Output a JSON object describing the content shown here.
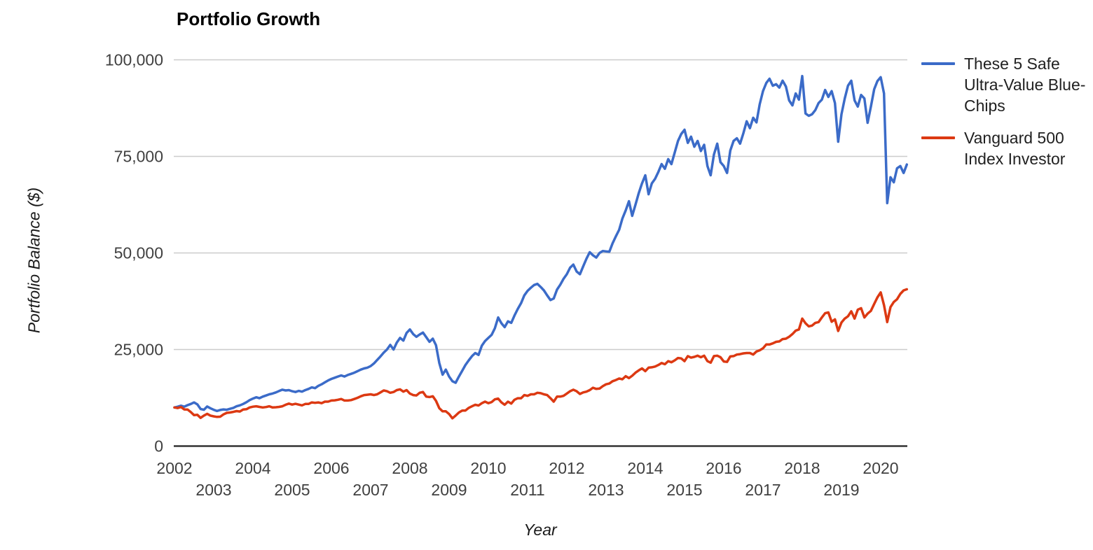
{
  "chart": {
    "title": "Portfolio Growth",
    "x_axis_title": "Year",
    "y_axis_title": "Portfolio Balance ($)"
  },
  "legend": {
    "items": [
      {
        "name": "These 5 Safe Ultra-Value Blue-Chips",
        "color": "#3B6BC8",
        "lines": [
          "These 5 Safe",
          "Ultra-Value Blue-",
          "Chips"
        ]
      },
      {
        "name": "Vanguard 500 Index Investor",
        "color": "#DC3912",
        "lines": [
          "Vanguard 500",
          "Index Investor"
        ]
      }
    ]
  },
  "chart_data": {
    "type": "line",
    "title": "Portfolio Growth",
    "xlabel": "Year",
    "ylabel": "Portfolio Balance ($)",
    "x_start_year": 2002,
    "points_per_year": 12,
    "x_end_label": "Sep 2020",
    "ylim": [
      0,
      100000
    ],
    "grid": "horizontal",
    "legend_position": "right",
    "y_ticks": [
      {
        "value": 0,
        "label": "0"
      },
      {
        "value": 25000,
        "label": "25,000"
      },
      {
        "value": 50000,
        "label": "50,000"
      },
      {
        "value": 75000,
        "label": "75,000"
      },
      {
        "value": 100000,
        "label": "100,000"
      }
    ],
    "x_ticks": [
      2002,
      2003,
      2004,
      2005,
      2006,
      2007,
      2008,
      2009,
      2010,
      2011,
      2012,
      2013,
      2014,
      2015,
      2016,
      2017,
      2018,
      2019,
      2020
    ],
    "series": [
      {
        "name": "These 5 Safe Ultra-Value Blue-Chips",
        "color": "#3B6BC8",
        "values": [
          10000,
          10200,
          10450,
          10200,
          10600,
          10900,
          11300,
          10800,
          9600,
          9400,
          10250,
          9800,
          9400,
          9100,
          9350,
          9500,
          9400,
          9650,
          9900,
          10300,
          10550,
          10900,
          11350,
          11900,
          12300,
          12650,
          12400,
          12800,
          13100,
          13400,
          13600,
          13900,
          14250,
          14600,
          14400,
          14500,
          14200,
          14000,
          14300,
          14100,
          14500,
          14800,
          15200,
          15000,
          15600,
          16000,
          16500,
          17000,
          17400,
          17700,
          18000,
          18300,
          18000,
          18400,
          18700,
          19000,
          19400,
          19800,
          20100,
          20300,
          20700,
          21400,
          22300,
          23200,
          24200,
          25000,
          26200,
          25000,
          26800,
          28000,
          27300,
          29300,
          30200,
          29000,
          28300,
          28900,
          29400,
          28200,
          27000,
          27800,
          26100,
          21500,
          18500,
          19800,
          18000,
          16800,
          16400,
          18000,
          19500,
          21000,
          22200,
          23300,
          24100,
          23600,
          26000,
          27200,
          28000,
          28800,
          30500,
          33300,
          31800,
          30800,
          32300,
          31900,
          33800,
          35500,
          37000,
          39000,
          40200,
          41000,
          41700,
          42000,
          41200,
          40300,
          39000,
          37800,
          38200,
          40500,
          41800,
          43300,
          44500,
          46200,
          47000,
          45200,
          44500,
          46500,
          48500,
          50200,
          49400,
          48800,
          50000,
          50500,
          50400,
          50300,
          52500,
          54300,
          56000,
          58900,
          61000,
          63400,
          59600,
          62500,
          65500,
          68000,
          70100,
          65200,
          68000,
          69200,
          71000,
          73000,
          71800,
          74300,
          73000,
          76000,
          79000,
          80800,
          81900,
          78500,
          80100,
          77500,
          79000,
          76400,
          78000,
          72500,
          70100,
          75500,
          78300,
          73500,
          72500,
          70700,
          76500,
          79000,
          79700,
          78300,
          81000,
          84100,
          82300,
          85000,
          83800,
          88500,
          91900,
          94000,
          95100,
          93300,
          93700,
          92800,
          94600,
          93100,
          89500,
          88200,
          91300,
          89700,
          95800,
          86100,
          85500,
          85900,
          87000,
          88800,
          89700,
          92200,
          90400,
          91900,
          88800,
          78800,
          85900,
          90000,
          93300,
          94600,
          89500,
          87900,
          90900,
          90000,
          83700,
          87900,
          92400,
          94500,
          95500,
          91300,
          62900,
          69600,
          68300,
          71900,
          72500,
          70700,
          72900
        ]
      },
      {
        "name": "Vanguard 500 Index Investor",
        "color": "#DC3912",
        "values": [
          10000,
          9850,
          10100,
          9500,
          9450,
          8800,
          8000,
          8100,
          7300,
          7900,
          8350,
          7900,
          7700,
          7550,
          7600,
          8200,
          8600,
          8700,
          8850,
          9050,
          8950,
          9450,
          9550,
          10000,
          10200,
          10300,
          10150,
          10000,
          10100,
          10300,
          10000,
          10050,
          10150,
          10300,
          10700,
          11000,
          10750,
          10950,
          10750,
          10550,
          10900,
          10900,
          11300,
          11200,
          11300,
          11100,
          11500,
          11500,
          11800,
          11850,
          12000,
          12200,
          11800,
          11800,
          11900,
          12200,
          12500,
          12900,
          13200,
          13300,
          13400,
          13200,
          13400,
          13900,
          14400,
          14200,
          13800,
          14000,
          14500,
          14700,
          14100,
          14500,
          13600,
          13200,
          13100,
          13800,
          14000,
          12800,
          12700,
          12900,
          11700,
          9800,
          9000,
          9000,
          8300,
          7200,
          7900,
          8700,
          9200,
          9200,
          9900,
          10300,
          10700,
          10500,
          11100,
          11500,
          11100,
          11400,
          12100,
          12300,
          11300,
          10700,
          11500,
          11000,
          12000,
          12400,
          12400,
          13200,
          13000,
          13400,
          13400,
          13800,
          13700,
          13400,
          13200,
          12400,
          11500,
          12800,
          12800,
          13000,
          13600,
          14200,
          14600,
          14200,
          13500,
          13900,
          14100,
          14500,
          15100,
          14800,
          14900,
          15500,
          16000,
          16200,
          16800,
          17100,
          17500,
          17300,
          18100,
          17600,
          18200,
          19000,
          19600,
          20100,
          19400,
          20300,
          20400,
          20600,
          21000,
          21500,
          21200,
          22000,
          21700,
          22200,
          22800,
          22700,
          22000,
          23300,
          22900,
          23100,
          23400,
          23000,
          23400,
          22000,
          21600,
          23300,
          23400,
          23000,
          21900,
          21800,
          23200,
          23300,
          23700,
          23800,
          24000,
          24100,
          24100,
          23700,
          24500,
          24800,
          25300,
          26300,
          26300,
          26600,
          27000,
          27100,
          27700,
          27800,
          28300,
          29000,
          29900,
          30200,
          33000,
          31800,
          31000,
          31200,
          31900,
          32100,
          33300,
          34400,
          34600,
          32200,
          32800,
          29800,
          32000,
          33000,
          33600,
          34900,
          33000,
          35300,
          35700,
          33300,
          34300,
          35000,
          36800,
          38500,
          39800,
          36500,
          32100,
          36000,
          37300,
          38000,
          39400,
          40300,
          40600
        ]
      }
    ],
    "style": {
      "grid_color": "#cccccc",
      "axis_color": "#333333",
      "tick_label_color": "#404040",
      "line_width": 3.5
    }
  }
}
